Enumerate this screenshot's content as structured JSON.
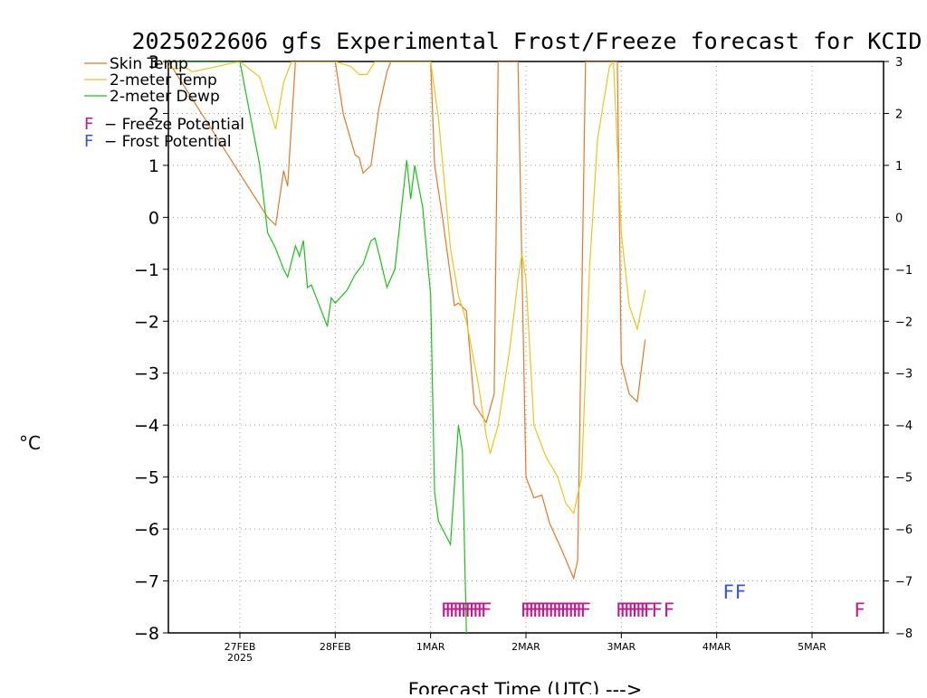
{
  "chart_data": {
    "type": "line",
    "title": "2025022606 gfs Experimental Frost/Freeze forecast for KCID",
    "xlabel": "Forecast Time (UTC) --->",
    "ylabel": "°C",
    "ylim": [
      -8,
      3
    ],
    "xlim": [
      "2025-02-26T06:00",
      "2025-03-05T18:00"
    ],
    "yticks": [
      3,
      2,
      1,
      0,
      -1,
      -2,
      -3,
      -4,
      -5,
      -6,
      -7,
      -8
    ],
    "xticks": [
      {
        "x": "2025-02-27T00:00",
        "label": "27FEB",
        "sublabel": "2025"
      },
      {
        "x": "2025-02-28T00:00",
        "label": "28FEB",
        "sublabel": ""
      },
      {
        "x": "2025-03-01T00:00",
        "label": "1MAR",
        "sublabel": ""
      },
      {
        "x": "2025-03-02T00:00",
        "label": "2MAR",
        "sublabel": ""
      },
      {
        "x": "2025-03-03T00:00",
        "label": "3MAR",
        "sublabel": ""
      },
      {
        "x": "2025-03-04T00:00",
        "label": "4MAR",
        "sublabel": ""
      },
      {
        "x": "2025-03-05T00:00",
        "label": "5MAR",
        "sublabel": ""
      }
    ],
    "grid": true,
    "legend_position": "top-left",
    "series": [
      {
        "name": "Skin Temp",
        "color": "#e07b28",
        "points": [
          [
            "2025-02-26T06:00",
            3.0
          ],
          [
            "2025-02-27T07:00",
            0.0
          ],
          [
            "2025-02-27T09:00",
            -0.15
          ],
          [
            "2025-02-27T11:00",
            0.9
          ],
          [
            "2025-02-27T12:00",
            0.6
          ],
          [
            "2025-02-27T14:00",
            3.0
          ],
          [
            "2025-02-28T00:00",
            3.0
          ],
          [
            "2025-02-28T02:00",
            2.0
          ],
          [
            "2025-02-28T05:00",
            1.2
          ],
          [
            "2025-02-28T06:00",
            1.15
          ],
          [
            "2025-02-28T07:00",
            0.85
          ],
          [
            "2025-02-28T09:00",
            1.0
          ],
          [
            "2025-02-28T11:00",
            2.1
          ],
          [
            "2025-02-28T13:00",
            2.8
          ],
          [
            "2025-02-28T14:00",
            3.0
          ],
          [
            "2025-03-01T00:00",
            3.0
          ],
          [
            "2025-03-01T01:00",
            1.0
          ],
          [
            "2025-03-01T03:00",
            0.0
          ],
          [
            "2025-03-01T06:00",
            -1.7
          ],
          [
            "2025-03-01T07:00",
            -1.65
          ],
          [
            "2025-03-01T09:00",
            -1.8
          ],
          [
            "2025-03-01T11:00",
            -3.6
          ],
          [
            "2025-03-01T14:00",
            -3.95
          ],
          [
            "2025-03-01T16:00",
            -3.4
          ],
          [
            "2025-03-01T17:00",
            3.0
          ],
          [
            "2025-03-01T22:00",
            3.0
          ],
          [
            "2025-03-02T00:00",
            -5.0
          ],
          [
            "2025-03-02T02:00",
            -5.4
          ],
          [
            "2025-03-02T04:00",
            -5.35
          ],
          [
            "2025-03-02T06:00",
            -5.9
          ],
          [
            "2025-03-02T09:00",
            -6.4
          ],
          [
            "2025-03-02T12:00",
            -6.95
          ],
          [
            "2025-03-02T13:00",
            -6.6
          ],
          [
            "2025-03-02T15:00",
            3.0
          ],
          [
            "2025-03-02T23:00",
            3.0
          ],
          [
            "2025-03-03T00:00",
            -2.8
          ],
          [
            "2025-03-03T02:00",
            -3.4
          ],
          [
            "2025-03-03T04:00",
            -3.55
          ],
          [
            "2025-03-03T06:00",
            -2.35
          ]
        ]
      },
      {
        "name": "2-meter Temp",
        "color": "#e8c818",
        "points": [
          [
            "2025-02-26T06:00",
            2.9
          ],
          [
            "2025-02-26T08:00",
            2.85
          ],
          [
            "2025-02-26T10:00",
            2.9
          ],
          [
            "2025-02-26T12:00",
            2.8
          ],
          [
            "2025-02-27T00:00",
            3.0
          ],
          [
            "2025-02-27T05:00",
            2.7
          ],
          [
            "2025-02-27T07:00",
            2.2
          ],
          [
            "2025-02-27T09:00",
            1.7
          ],
          [
            "2025-02-27T11:00",
            2.6
          ],
          [
            "2025-02-27T13:00",
            3.0
          ],
          [
            "2025-02-28T00:00",
            3.0
          ],
          [
            "2025-02-28T04:00",
            2.9
          ],
          [
            "2025-02-28T06:00",
            2.75
          ],
          [
            "2025-02-28T08:00",
            2.75
          ],
          [
            "2025-02-28T10:00",
            3.0
          ],
          [
            "2025-03-01T00:00",
            3.0
          ],
          [
            "2025-03-01T02:00",
            1.9
          ],
          [
            "2025-03-01T05:00",
            -0.6
          ],
          [
            "2025-03-01T07:00",
            -1.5
          ],
          [
            "2025-03-01T09:00",
            -2.0
          ],
          [
            "2025-03-01T12:00",
            -3.2
          ],
          [
            "2025-03-01T14:00",
            -4.2
          ],
          [
            "2025-03-01T15:00",
            -4.55
          ],
          [
            "2025-03-01T17:00",
            -4.0
          ],
          [
            "2025-03-01T20:00",
            -2.5
          ],
          [
            "2025-03-01T22:00",
            -1.2
          ],
          [
            "2025-03-01T23:00",
            -0.7
          ],
          [
            "2025-03-02T00:00",
            -1.2
          ],
          [
            "2025-03-02T02:00",
            -4.0
          ],
          [
            "2025-03-02T05:00",
            -4.6
          ],
          [
            "2025-03-02T08:00",
            -5.0
          ],
          [
            "2025-03-02T10:00",
            -5.5
          ],
          [
            "2025-03-02T12:00",
            -5.7
          ],
          [
            "2025-03-02T14:00",
            -5.0
          ],
          [
            "2025-03-02T16:00",
            -1.0
          ],
          [
            "2025-03-02T18:00",
            1.5
          ],
          [
            "2025-03-02T21:00",
            2.9
          ],
          [
            "2025-03-02T22:00",
            3.0
          ],
          [
            "2025-03-03T00:00",
            -0.3
          ],
          [
            "2025-03-03T02:00",
            -1.7
          ],
          [
            "2025-03-03T04:00",
            -2.15
          ],
          [
            "2025-03-03T06:00",
            -1.4
          ]
        ]
      },
      {
        "name": "2-meter Dewp",
        "color": "#19c419",
        "points": [
          [
            "2025-02-26T06:00",
            3.0
          ],
          [
            "2025-02-27T00:00",
            3.0
          ],
          [
            "2025-02-27T05:00",
            1.0
          ],
          [
            "2025-02-27T07:00",
            -0.3
          ],
          [
            "2025-02-27T09:00",
            -0.6
          ],
          [
            "2025-02-27T11:00",
            -1.0
          ],
          [
            "2025-02-27T12:00",
            -1.15
          ],
          [
            "2025-02-27T14:00",
            -0.55
          ],
          [
            "2025-02-27T15:00",
            -0.75
          ],
          [
            "2025-02-27T16:00",
            -0.45
          ],
          [
            "2025-02-27T17:00",
            -1.35
          ],
          [
            "2025-02-27T18:00",
            -1.3
          ],
          [
            "2025-02-27T20:00",
            -1.7
          ],
          [
            "2025-02-27T22:00",
            -2.1
          ],
          [
            "2025-02-27T23:00",
            -1.55
          ],
          [
            "2025-02-28T00:00",
            -1.65
          ],
          [
            "2025-02-28T03:00",
            -1.4
          ],
          [
            "2025-02-28T05:00",
            -1.1
          ],
          [
            "2025-02-28T07:00",
            -0.9
          ],
          [
            "2025-02-28T09:00",
            -0.45
          ],
          [
            "2025-02-28T10:00",
            -0.4
          ],
          [
            "2025-02-28T11:00",
            -0.7
          ],
          [
            "2025-02-28T13:00",
            -1.35
          ],
          [
            "2025-02-28T15:00",
            -1.0
          ],
          [
            "2025-02-28T18:00",
            1.1
          ],
          [
            "2025-02-28T19:00",
            0.35
          ],
          [
            "2025-02-28T20:00",
            1.0
          ],
          [
            "2025-02-28T22:00",
            0.2
          ],
          [
            "2025-03-01T00:00",
            -1.5
          ],
          [
            "2025-03-01T01:00",
            -5.3
          ],
          [
            "2025-03-01T02:00",
            -5.85
          ],
          [
            "2025-03-01T05:00",
            -6.3
          ],
          [
            "2025-03-01T07:00",
            -4.0
          ],
          [
            "2025-03-01T08:00",
            -4.5
          ],
          [
            "2025-03-01T09:00",
            -8.0
          ]
        ]
      }
    ],
    "potential_series": [
      {
        "name": "Freeze Potential",
        "symbol": "F",
        "color": "#c0188c",
        "y": -7.55,
        "x": [
          "2025-03-01T04:00",
          "2025-03-01T05:00",
          "2025-03-01T06:00",
          "2025-03-01T07:00",
          "2025-03-01T08:00",
          "2025-03-01T09:00",
          "2025-03-01T10:00",
          "2025-03-01T11:00",
          "2025-03-01T12:00",
          "2025-03-01T13:00",
          "2025-03-01T14:00",
          "2025-03-02T00:00",
          "2025-03-02T01:00",
          "2025-03-02T02:00",
          "2025-03-02T03:00",
          "2025-03-02T04:00",
          "2025-03-02T05:00",
          "2025-03-02T06:00",
          "2025-03-02T07:00",
          "2025-03-02T08:00",
          "2025-03-02T09:00",
          "2025-03-02T10:00",
          "2025-03-02T11:00",
          "2025-03-02T12:00",
          "2025-03-02T13:00",
          "2025-03-02T14:00",
          "2025-03-02T15:00",
          "2025-03-03T00:00",
          "2025-03-03T01:00",
          "2025-03-03T02:00",
          "2025-03-03T03:00",
          "2025-03-03T04:00",
          "2025-03-03T05:00",
          "2025-03-03T06:00",
          "2025-03-03T07:00",
          "2025-03-03T09:00",
          "2025-03-03T12:00",
          "2025-03-05T12:00"
        ]
      },
      {
        "name": "Frost Potential",
        "symbol": "F",
        "color": "#3355dd",
        "y": -7.2,
        "x": [
          "2025-03-04T03:00",
          "2025-03-04T06:00"
        ]
      }
    ]
  }
}
